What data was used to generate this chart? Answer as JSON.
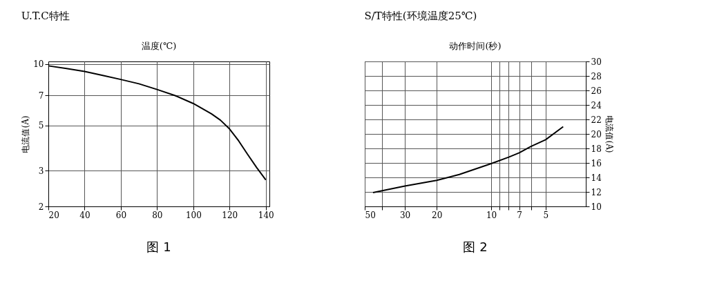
{
  "chart_data": [
    {
      "type": "line",
      "title": "U.T.C特性",
      "xlabel": "温度(℃)",
      "ylabel": "电流值(A)",
      "annotations": [
        "图 1"
      ],
      "series": [
        {
          "color": "#000000",
          "x": [
            20,
            30,
            40,
            50,
            60,
            70,
            80,
            90,
            100,
            110,
            115,
            120,
            125,
            130,
            135,
            140
          ],
          "values": [
            9.8,
            9.5,
            9.2,
            8.8,
            8.4,
            8.0,
            7.5,
            7.0,
            6.4,
            5.7,
            5.3,
            4.8,
            4.2,
            3.6,
            3.1,
            2.7
          ]
        }
      ],
      "xlim": [
        20,
        142
      ],
      "xticks": [
        20,
        40,
        60,
        80,
        100,
        120,
        140
      ],
      "ylim": [
        2,
        10.3
      ],
      "yticks": [
        2,
        3,
        5,
        7,
        10
      ],
      "log": "y",
      "grid": true,
      "marker": "none",
      "line_style": "solid"
    },
    {
      "type": "line",
      "title": "S/T特性(环境温度25℃)",
      "xlabel": "动作时间(秒)",
      "ylabel": "电流值(A)",
      "annotations": [
        "图 2"
      ],
      "series": [
        {
          "color": "#000000",
          "x": [
            45,
            30,
            20,
            15,
            10,
            8,
            7,
            6,
            5,
            4
          ],
          "values": [
            11.9,
            12.8,
            13.6,
            14.4,
            15.9,
            16.8,
            17.4,
            18.3,
            19.2,
            21.0
          ]
        }
      ],
      "xlim": [
        50,
        3
      ],
      "xticks": [
        50,
        {
          "value": 40,
          "label": null
        },
        30,
        20,
        10,
        {
          "value": 9,
          "label": null
        },
        {
          "value": 8,
          "label": null
        },
        7,
        {
          "value": 6,
          "label": null
        },
        5
      ],
      "ylim": [
        10,
        30
      ],
      "yticks": [
        10,
        12,
        14,
        16,
        18,
        20,
        22,
        24,
        26,
        28,
        30
      ],
      "log": "x",
      "grid": true,
      "marker": "none",
      "line_style": "solid"
    }
  ]
}
